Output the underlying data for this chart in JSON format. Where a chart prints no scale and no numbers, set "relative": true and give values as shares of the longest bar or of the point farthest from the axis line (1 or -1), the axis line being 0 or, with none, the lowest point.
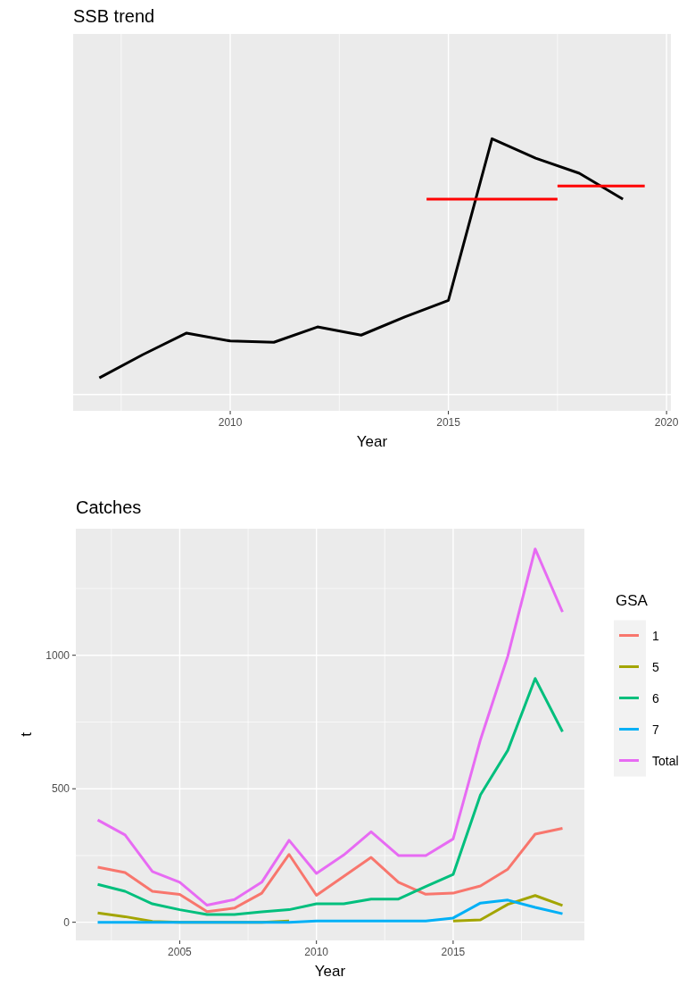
{
  "chart_data": [
    {
      "type": "line",
      "title": "SSB trend",
      "xlabel": "Year",
      "relative": true,
      "grid": true,
      "legend": false,
      "line_style": "solid",
      "xlim": [
        2006.4,
        2020.1
      ],
      "xticks": [
        {
          "value": 2007.5,
          "label": null
        },
        2010,
        {
          "value": 2012.5,
          "label": null
        },
        2015,
        {
          "value": 2017.5,
          "label": null
        },
        2020
      ],
      "series": [
        {
          "color": "#000000",
          "x": [
            2007,
            2008,
            2009,
            2010,
            2011,
            2012,
            2013,
            2014,
            2015,
            2016,
            2017,
            2018,
            2019
          ],
          "values": [
            0.065,
            0.156,
            0.24,
            0.209,
            0.204,
            0.264,
            0.232,
            0.303,
            0.368,
            1,
            0.924,
            0.865,
            0.764
          ]
        },
        {
          "color": "#ff0000",
          "x": [
            2014.5,
            2017.5
          ],
          "values": [
            0.764,
            0.764
          ]
        },
        {
          "color": "#ff0000",
          "x": [
            2017.5,
            2019.5
          ],
          "values": [
            0.815,
            0.815
          ]
        }
      ]
    },
    {
      "type": "line",
      "title": "Catches",
      "xlabel": "Year",
      "ylabel": "t",
      "legend_title": "GSA",
      "legend": "right",
      "grid": true,
      "line_style": "solid",
      "xlim": [
        2001.2,
        2019.8
      ],
      "xticks": [
        {
          "value": 2002.5,
          "label": null
        },
        2005,
        {
          "value": 2007.5,
          "label": null
        },
        2010,
        {
          "value": 2012.5,
          "label": null
        },
        2015,
        {
          "value": 2017.5,
          "label": null
        }
      ],
      "ylim": [
        -68,
        1474
      ],
      "yticks": [
        0,
        {
          "value": 250,
          "label": null
        },
        500,
        {
          "value": 750,
          "label": null
        },
        1000,
        {
          "value": 1250,
          "label": null
        }
      ],
      "x": [
        2002,
        2003,
        2004,
        2005,
        2006,
        2007,
        2008,
        2009,
        2010,
        2011,
        2012,
        2013,
        2014,
        2015,
        2016,
        2017,
        2018,
        2019
      ],
      "series": [
        {
          "name": "1",
          "color": "#f8766d",
          "values": [
            206,
            186,
            116,
            104,
            40,
            53,
            109,
            254,
            101,
            172,
            243,
            150,
            105,
            109,
            136,
            199,
            330,
            352
          ]
        },
        {
          "name": "5",
          "color": "#a3a500",
          "values": [
            35,
            21,
            3,
            0,
            0,
            0,
            0,
            5,
            null,
            null,
            null,
            null,
            null,
            5,
            9,
            67,
            100,
            63
          ]
        },
        {
          "name": "6",
          "color": "#00bf7d",
          "values": [
            142,
            116,
            69,
            47,
            29,
            29,
            39,
            47,
            69,
            69,
            87,
            87,
            134,
            179,
            477,
            644,
            913,
            714
          ]
        },
        {
          "name": "7",
          "color": "#00b0f6",
          "values": [
            0,
            0,
            0,
            0,
            0,
            0,
            0,
            0,
            5,
            5,
            5,
            5,
            5,
            16,
            72,
            83,
            56,
            32
          ]
        },
        {
          "name": "Total",
          "color": "#e76bf3",
          "values": [
            383,
            327,
            190,
            150,
            64,
            85,
            150,
            307,
            183,
            252,
            339,
            250,
            250,
            312,
            684,
            997,
            1398,
            1162
          ]
        }
      ]
    }
  ]
}
